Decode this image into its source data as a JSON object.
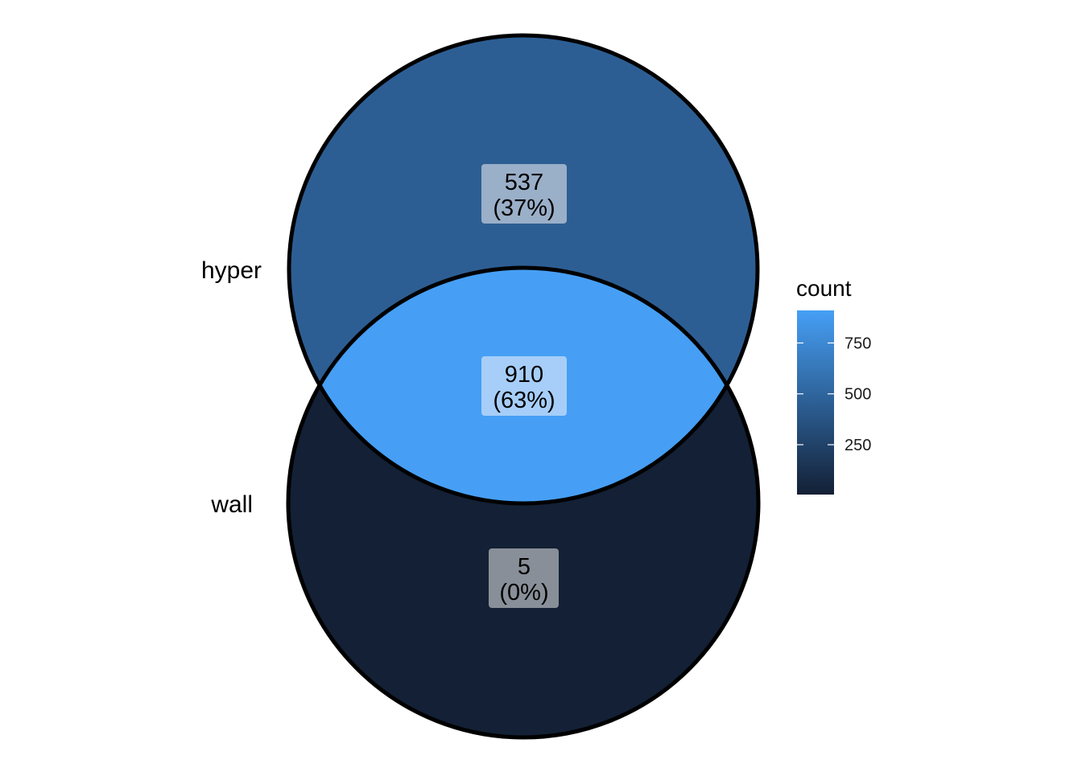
{
  "venn": {
    "sets": [
      {
        "key": "hyper",
        "label": "hyper"
      },
      {
        "key": "wall",
        "label": "wall"
      }
    ],
    "regions": [
      {
        "key": "hyper_only",
        "count": "537",
        "percent": "(37%)",
        "value": 537,
        "fill": "#2D5E93",
        "label_bg": "#9AAFC8"
      },
      {
        "key": "both",
        "count": "910",
        "percent": "(63%)",
        "value": 910,
        "fill": "#469FF5",
        "label_bg": "#A6CEF9"
      },
      {
        "key": "wall_only",
        "count": "5",
        "percent": "(0%)",
        "value": 5,
        "fill": "#132035",
        "label_bg": "#898F98"
      }
    ],
    "outline_color": "#000000"
  },
  "legend": {
    "title": "count",
    "ticks": [
      {
        "label": "750",
        "value": 750
      },
      {
        "label": "500",
        "value": 500
      },
      {
        "label": "250",
        "value": 250
      }
    ],
    "min": 5,
    "max": 910,
    "gradient_low": "#132035",
    "gradient_high": "#469FF5"
  }
}
